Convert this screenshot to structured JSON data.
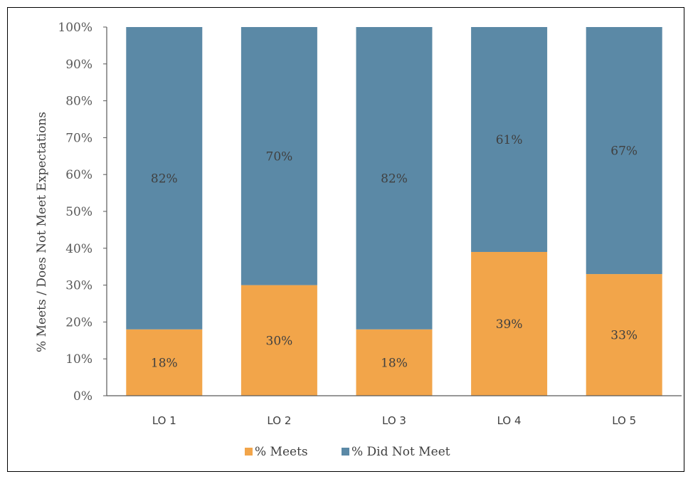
{
  "chart_data": {
    "type": "bar",
    "stacked": true,
    "categories": [
      "LO 1",
      "LO 2",
      "LO 3",
      "LO 4",
      "LO 5"
    ],
    "series": [
      {
        "name": "% Meets",
        "values": [
          18,
          30,
          18,
          39,
          33
        ],
        "labels": [
          "18%",
          "30%",
          "18%",
          "39%",
          "33%"
        ],
        "color": "#F2A54A"
      },
      {
        "name": "% Did Not Meet",
        "values": [
          82,
          70,
          82,
          61,
          67
        ],
        "labels": [
          "82%",
          "70%",
          "82%",
          "61%",
          "67%"
        ],
        "color": "#5B89A6"
      }
    ],
    "ylabel": "% Meets / Does Not Meet Expectations",
    "xlabel": "",
    "ylim": [
      0,
      100
    ],
    "yticks": [
      "0%",
      "10%",
      "20%",
      "30%",
      "40%",
      "50%",
      "60%",
      "70%",
      "80%",
      "90%",
      "100%"
    ],
    "grid": false,
    "legend": "bottom"
  }
}
